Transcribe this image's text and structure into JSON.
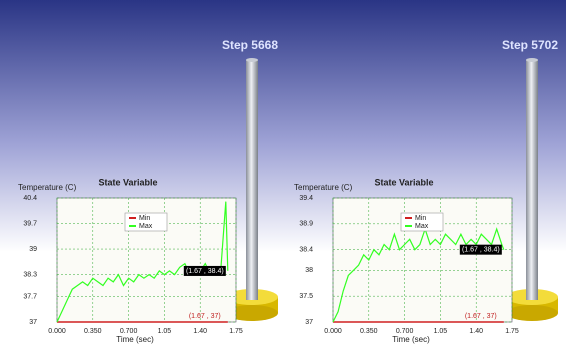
{
  "steps": [
    "Step 5668",
    "Step 5702"
  ],
  "chart_data": [
    {
      "type": "line",
      "title": "State Variable",
      "x_label": "Time (sec)",
      "y_label": "Temperature (C)",
      "xlim": [
        0,
        1.75
      ],
      "xticks": [
        {
          "value": 0,
          "label": "0.000"
        },
        {
          "value": 0.35,
          "label": "0.350"
        },
        {
          "value": 0.7,
          "label": "0.700"
        },
        1.05,
        {
          "value": 1.4,
          "label": "1.40"
        },
        1.75
      ],
      "ylim": [
        37,
        40.4
      ],
      "yticks": [
        37,
        37.7,
        38.3,
        39,
        39.7,
        40.4
      ],
      "grid": true,
      "legend": "upper center",
      "series": [
        {
          "name": "Min",
          "color": "#d02020",
          "x": [
            0,
            1.67
          ],
          "values": [
            37,
            37
          ]
        },
        {
          "name": "Max",
          "color": "#33ff22",
          "x": [
            0,
            0.05,
            0.1,
            0.15,
            0.2,
            0.25,
            0.3,
            0.35,
            0.4,
            0.45,
            0.5,
            0.55,
            0.6,
            0.65,
            0.7,
            0.75,
            0.8,
            0.85,
            0.9,
            0.95,
            1.0,
            1.05,
            1.1,
            1.15,
            1.2,
            1.25,
            1.3,
            1.35,
            1.4,
            1.45,
            1.5,
            1.55,
            1.6,
            1.65,
            1.67
          ],
          "values": [
            37,
            37.3,
            37.6,
            37.9,
            38.0,
            38.1,
            38.0,
            38.2,
            38.1,
            38.0,
            38.2,
            38.1,
            38.3,
            38.0,
            38.2,
            38.1,
            38.3,
            38.2,
            38.3,
            38.2,
            38.4,
            38.3,
            38.4,
            38.3,
            38.5,
            38.6,
            38.3,
            38.5,
            38.4,
            38.6,
            38.3,
            38.5,
            38.4,
            40.3,
            38.4
          ]
        }
      ],
      "annotations": [
        "(1.67 , 38.4)",
        "(1.67 , 37)"
      ]
    },
    {
      "type": "line",
      "title": "State Variable",
      "x_label": "Time (sec)",
      "y_label": "Temperature (C)",
      "xlim": [
        0,
        1.75
      ],
      "xticks": [
        {
          "value": 0,
          "label": "0.000"
        },
        {
          "value": 0.35,
          "label": "0.350"
        },
        {
          "value": 0.7,
          "label": "0.700"
        },
        1.05,
        {
          "value": 1.4,
          "label": "1.40"
        },
        1.75
      ],
      "ylim": [
        37,
        39.4
      ],
      "yticks": [
        37,
        37.5,
        38,
        38.4,
        38.9,
        39.4
      ],
      "grid": true,
      "legend": "upper center",
      "series": [
        {
          "name": "Min",
          "color": "#d02020",
          "x": [
            0,
            1.67
          ],
          "values": [
            37,
            37
          ]
        },
        {
          "name": "Max",
          "color": "#33ff22",
          "x": [
            0,
            0.05,
            0.1,
            0.15,
            0.2,
            0.25,
            0.3,
            0.35,
            0.4,
            0.45,
            0.5,
            0.55,
            0.6,
            0.65,
            0.7,
            0.75,
            0.8,
            0.85,
            0.9,
            0.95,
            1.0,
            1.05,
            1.1,
            1.15,
            1.2,
            1.25,
            1.3,
            1.35,
            1.4,
            1.45,
            1.5,
            1.55,
            1.6,
            1.65,
            1.67
          ],
          "values": [
            37,
            37.2,
            37.6,
            37.9,
            38.0,
            38.1,
            38.3,
            38.2,
            38.4,
            38.3,
            38.5,
            38.4,
            38.7,
            38.4,
            38.5,
            38.6,
            38.4,
            38.5,
            38.8,
            38.5,
            38.6,
            38.5,
            38.7,
            38.6,
            38.5,
            38.7,
            38.5,
            38.6,
            38.5,
            38.7,
            38.6,
            38.5,
            38.8,
            38.5,
            38.4
          ]
        }
      ],
      "annotations": [
        "(1.67 , 38.4)",
        "(1.67 , 37)"
      ]
    }
  ]
}
